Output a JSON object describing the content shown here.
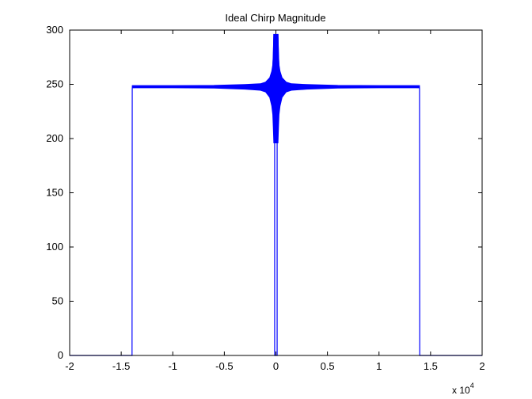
{
  "chart_data": {
    "type": "line",
    "title": "Ideal Chirp Magnitude",
    "xlabel": "",
    "ylabel": "",
    "x_multiplier": {
      "base": "x 10",
      "exponent": "4"
    },
    "xlim": [
      -2,
      2
    ],
    "ylim": [
      0,
      300
    ],
    "x_ticks": [
      "-2",
      "-1.5",
      "-1",
      "-0.5",
      "0",
      "0.5",
      "1",
      "1.5",
      "2"
    ],
    "y_ticks": [
      "0",
      "50",
      "100",
      "150",
      "200",
      "250",
      "300"
    ],
    "grid": false,
    "legend": "none",
    "series": [
      {
        "color": "#0000ff",
        "x": [
          -2,
          -1.395,
          -1.394,
          -1.393,
          -1.392,
          -1.385,
          -1.3,
          -1.0,
          -0.6,
          -0.3,
          -0.15,
          -0.1,
          -0.06,
          -0.04,
          -0.03,
          -0.025,
          -0.02,
          -0.012,
          -0.012,
          0.012,
          0.012,
          0.02,
          0.025,
          0.03,
          0.04,
          0.06,
          0.1,
          0.15,
          0.3,
          0.6,
          1.0,
          1.3,
          1.385,
          1.392,
          1.393,
          1.394,
          1.395,
          2
        ],
        "y": [
          0,
          0,
          122,
          246,
          248,
          247,
          247.5,
          248,
          248,
          248.5,
          249.5,
          251,
          255,
          260,
          266,
          275,
          296,
          296,
          0,
          0,
          296,
          296,
          275,
          266,
          260,
          255,
          251,
          249.5,
          248.5,
          248,
          248,
          247.5,
          247,
          248,
          246,
          122,
          0,
          0
        ],
        "envelope_x": [
          -1.39,
          -1.0,
          -0.6,
          -0.3,
          -0.15,
          -0.1,
          -0.06,
          -0.04,
          -0.03,
          -0.025,
          -0.02,
          -0.015,
          0.015,
          0.02,
          0.025,
          0.03,
          0.04,
          0.06,
          0.1,
          0.15,
          0.3,
          0.6,
          1.0,
          1.39
        ],
        "envelope_upper": [
          248.8,
          248.8,
          249,
          249.8,
          250.5,
          252,
          256,
          262,
          268,
          278,
          296,
          296,
          296,
          296,
          278,
          268,
          262,
          256,
          252,
          250.5,
          249.8,
          249,
          248.8,
          248.8
        ],
        "envelope_lower": [
          246.8,
          246.8,
          246.5,
          245.5,
          244.5,
          243,
          238,
          230,
          222,
          210,
          196,
          196,
          196,
          196,
          210,
          222,
          230,
          238,
          243,
          244.5,
          245.5,
          246.5,
          246.8,
          246.8
        ]
      }
    ]
  }
}
